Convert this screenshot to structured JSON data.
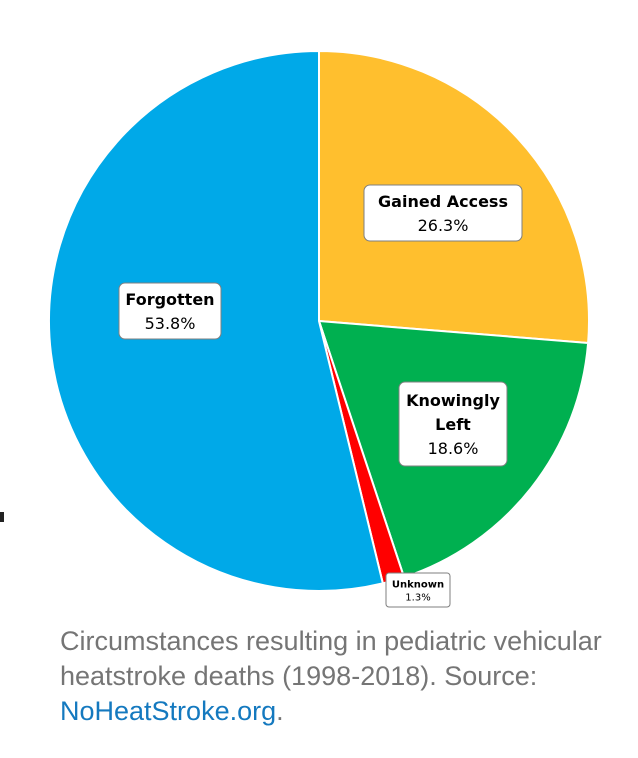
{
  "chart_data": {
    "type": "pie",
    "title": "",
    "slices": [
      {
        "name": "Gained Access",
        "value": 26.3,
        "label": "26.3%",
        "color": "#FFBF2E"
      },
      {
        "name": "Knowingly Left",
        "value": 18.6,
        "label": "18.6%",
        "color": "#00B050"
      },
      {
        "name": "Unknown",
        "value": 1.3,
        "label": "1.3%",
        "color": "#FF0000"
      },
      {
        "name": "Forgotten",
        "value": 53.8,
        "label": "53.8%",
        "color": "#00A9E8"
      }
    ],
    "start": "12 o'clock",
    "direction": "clockwise"
  },
  "caption": {
    "text": "Circumstances resulting in pediatric vehicular heatstroke deaths (1998-2018). Source: ",
    "link_text": "NoHeatStroke.org",
    "after_link": "."
  }
}
